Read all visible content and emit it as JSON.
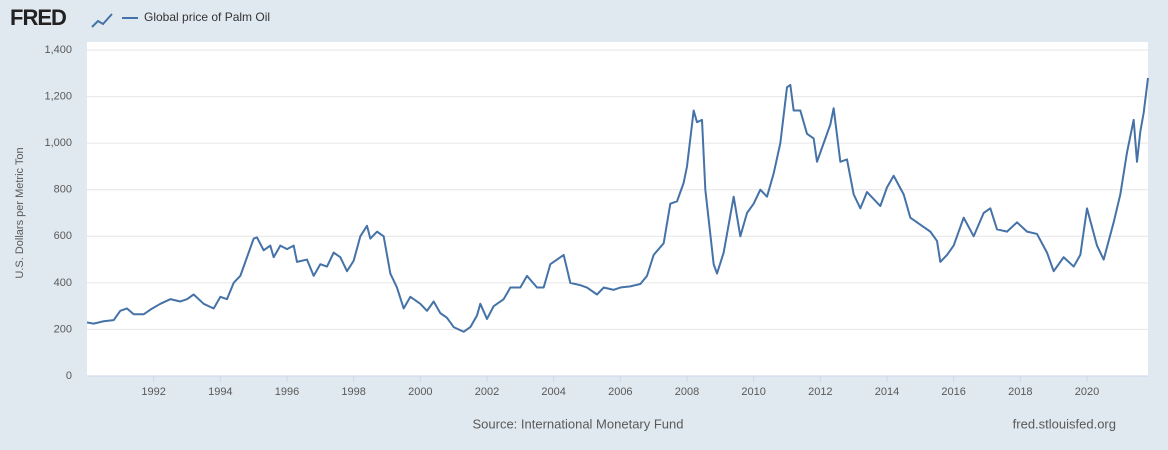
{
  "logo": "FRED",
  "chart_data": {
    "type": "line",
    "source": "Source: International Monetary Fund",
    "credit": "fred.stlouisfed.org",
    "y_label": "U.S. Dollars per Metric Ton",
    "x": [
      1990.0,
      1990.2,
      1990.5,
      1990.8,
      1991.0,
      1991.2,
      1991.4,
      1991.7,
      1991.9,
      1992.2,
      1992.5,
      1992.8,
      1993.0,
      1993.2,
      1993.5,
      1993.8,
      1994.0,
      1994.2,
      1994.4,
      1994.6,
      1994.8,
      1995.0,
      1995.1,
      1995.3,
      1995.5,
      1995.6,
      1995.8,
      1996.0,
      1996.2,
      1996.3,
      1996.6,
      1996.8,
      1997.0,
      1997.2,
      1997.4,
      1997.6,
      1997.8,
      1998.0,
      1998.2,
      1998.4,
      1998.5,
      1998.7,
      1998.9,
      1999.1,
      1999.3,
      1999.5,
      1999.7,
      2000.0,
      2000.2,
      2000.4,
      2000.6,
      2000.8,
      2001.0,
      2001.3,
      2001.5,
      2001.7,
      2001.8,
      2002.0,
      2002.2,
      2002.5,
      2002.7,
      2003.0,
      2003.2,
      2003.5,
      2003.7,
      2003.9,
      2004.1,
      2004.3,
      2004.5,
      2004.8,
      2005.0,
      2005.3,
      2005.5,
      2005.8,
      2006.0,
      2006.3,
      2006.6,
      2006.8,
      2007.0,
      2007.3,
      2007.5,
      2007.7,
      2007.9,
      2008.0,
      2008.2,
      2008.3,
      2008.45,
      2008.55,
      2008.8,
      2008.9,
      2009.1,
      2009.4,
      2009.6,
      2009.8,
      2010.0,
      2010.2,
      2010.4,
      2010.6,
      2010.8,
      2011.0,
      2011.1,
      2011.2,
      2011.4,
      2011.6,
      2011.8,
      2011.9,
      2012.1,
      2012.3,
      2012.4,
      2012.6,
      2012.8,
      2013.0,
      2013.2,
      2013.4,
      2013.6,
      2013.8,
      2014.0,
      2014.2,
      2014.5,
      2014.7,
      2015.0,
      2015.3,
      2015.5,
      2015.6,
      2015.8,
      2016.0,
      2016.3,
      2016.6,
      2016.9,
      2017.1,
      2017.3,
      2017.6,
      2017.9,
      2018.2,
      2018.5,
      2018.8,
      2019.0,
      2019.3,
      2019.6,
      2019.8,
      2020.0,
      2020.3,
      2020.5,
      2020.8,
      2021.0,
      2021.2,
      2021.4,
      2021.5,
      2021.6,
      2021.7,
      2021.83
    ],
    "series": [
      {
        "name": "Global price of Palm Oil",
        "color": "#4572a7",
        "values": [
          230,
          225,
          235,
          240,
          280,
          290,
          265,
          265,
          285,
          310,
          330,
          320,
          330,
          350,
          310,
          290,
          340,
          330,
          400,
          430,
          510,
          590,
          595,
          540,
          560,
          510,
          560,
          545,
          560,
          490,
          500,
          430,
          480,
          470,
          530,
          510,
          450,
          495,
          600,
          645,
          590,
          620,
          600,
          440,
          380,
          290,
          340,
          310,
          280,
          320,
          270,
          250,
          210,
          190,
          210,
          260,
          310,
          245,
          300,
          330,
          380,
          380,
          430,
          380,
          380,
          480,
          500,
          520,
          400,
          390,
          380,
          350,
          380,
          370,
          380,
          385,
          395,
          430,
          520,
          570,
          740,
          750,
          830,
          900,
          1140,
          1090,
          1100,
          800,
          480,
          440,
          530,
          770,
          600,
          700,
          740,
          800,
          770,
          870,
          1000,
          1240,
          1250,
          1140,
          1140,
          1040,
          1020,
          920,
          1000,
          1080,
          1150,
          920,
          930,
          780,
          720,
          790,
          760,
          730,
          810,
          860,
          780,
          680,
          650,
          620,
          580,
          490,
          520,
          560,
          680,
          600,
          700,
          720,
          630,
          620,
          660,
          620,
          610,
          530,
          450,
          510,
          470,
          520,
          720,
          560,
          500,
          660,
          780,
          960,
          1100,
          920,
          1050,
          1130,
          1280
        ]
      }
    ],
    "xlim": [
      1990,
      2021.83
    ],
    "xticks": [
      1992,
      1994,
      1996,
      1998,
      2000,
      2002,
      2004,
      2006,
      2008,
      2010,
      2012,
      2014,
      2016,
      2018,
      2020
    ],
    "ylim": [
      0,
      1400
    ],
    "yticks": [
      0,
      200,
      400,
      600,
      800,
      {
        "value": 1000,
        "label": "1,000"
      },
      {
        "value": 1200,
        "label": "1,200"
      },
      {
        "value": 1400,
        "label": "1,400"
      }
    ],
    "grid": true
  }
}
